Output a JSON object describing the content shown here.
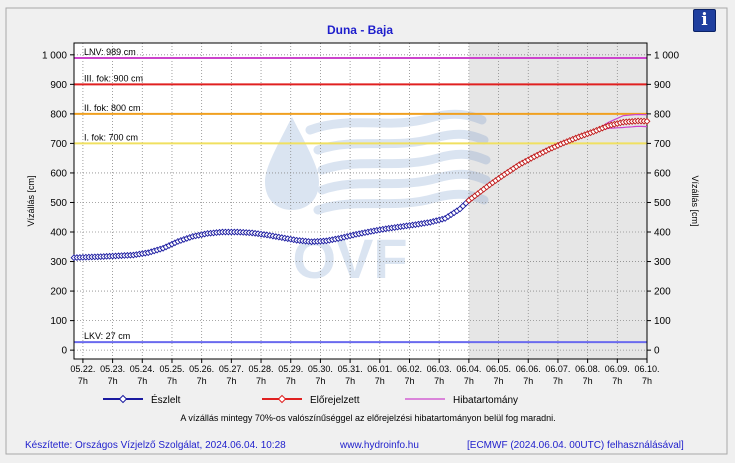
{
  "chart_data": {
    "type": "line",
    "title": "Duna - Baja",
    "ylabel_left": "Vízállás [cm]",
    "ylabel_right": "Vízállás [cm]",
    "ylim": [
      -30,
      1040
    ],
    "y_ticks": [
      0,
      100,
      200,
      300,
      400,
      500,
      600,
      700,
      800,
      900,
      1000
    ],
    "y_tick_labels": [
      "0",
      "100",
      "200",
      "300",
      "400",
      "500",
      "600",
      "700",
      "800",
      "900",
      "1 000"
    ],
    "x_range_days": [
      "05.22. 00:00",
      "06.10. 07:00"
    ],
    "x_tick_labels": [
      "05.22.",
      "05.23.",
      "05.24.",
      "05.25.",
      "05.26.",
      "05.27.",
      "05.28.",
      "05.29.",
      "05.30.",
      "05.31.",
      "06.01.",
      "06.02.",
      "06.03.",
      "06.04.",
      "06.05.",
      "06.06.",
      "06.07.",
      "06.08.",
      "06.09.",
      "06.10."
    ],
    "x_tick_sublabel": "7h",
    "forecast_shade_start": "06.04. 07:00",
    "grid": true,
    "threshold_lines": [
      {
        "label": "LNV: 989 cm",
        "value": 989,
        "color": "#cc44cc"
      },
      {
        "label": "III. fok: 900 cm",
        "value": 900,
        "color": "#e02020"
      },
      {
        "label": "II. fok: 800 cm",
        "value": 800,
        "color": "#f0a020"
      },
      {
        "label": "I. fok: 700 cm",
        "value": 700,
        "color": "#f0e060"
      },
      {
        "label": "LKV: 27 cm",
        "value": 27,
        "color": "#6a6aee"
      }
    ],
    "observed_anchor": {
      "x_day": [
        0,
        1,
        2,
        2.5,
        3,
        3.5,
        4,
        4.5,
        5,
        5.5,
        6,
        6.5,
        7,
        7.5,
        8,
        8.5,
        9,
        9.5,
        10,
        10.5,
        11,
        11.5,
        12,
        12.5,
        13,
        13.3
      ],
      "values": [
        313,
        317,
        322,
        330,
        345,
        368,
        385,
        395,
        400,
        400,
        397,
        390,
        381,
        372,
        367,
        370,
        380,
        392,
        402,
        411,
        418,
        425,
        433,
        446,
        478,
        507
      ]
    },
    "forecast_anchor": {
      "x_day": [
        13.3,
        14,
        14.5,
        15,
        15.5,
        16,
        16.5,
        17,
        17.5,
        18,
        18.5,
        19,
        19.3
      ],
      "values": [
        507,
        560,
        595,
        628,
        655,
        680,
        702,
        722,
        740,
        760,
        772,
        776,
        775
      ]
    },
    "error_band_max": [
      775,
      790,
      797,
      797
    ],
    "error_band_min": [
      775,
      760,
      758,
      758
    ],
    "series": [
      {
        "name": "Észlelt",
        "color": "#1a1aa0"
      },
      {
        "name": "Előrejelzett",
        "color": "#e02020"
      },
      {
        "name": "Hibatartomány",
        "color": "#cc44cc"
      }
    ],
    "note": "A vízállás mintegy 70%-os valószínűséggel az előrejelzési hibatartományon belül fog maradni."
  },
  "footer": {
    "credit": "Készítette: Országos Vízjelző Szolgálat, 2024.06.04. 10:28",
    "url": "www.hydroinfo.hu",
    "model": "[ECMWF (2024.06.04. 00UTC) felhasználásával]"
  },
  "watermark": {
    "text": "OVF",
    "icon": "water-drop-logo"
  },
  "info_button": {
    "label": "i",
    "icon": "info-icon"
  }
}
